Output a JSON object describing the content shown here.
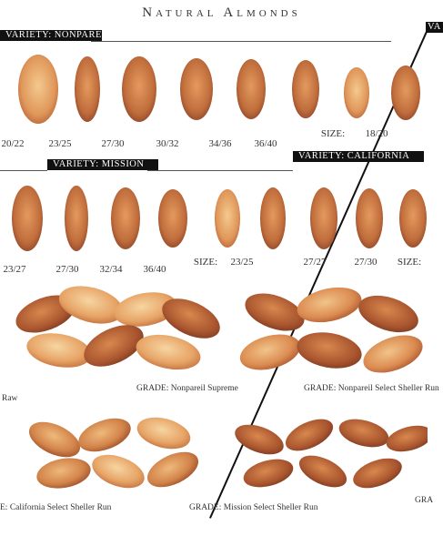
{
  "title": "Natural Almonds",
  "sections": {
    "nonpareil": {
      "band": "VARIETY: NONPAREIL"
    },
    "mission": {
      "band": "VARIETY: MISSION"
    },
    "california": {
      "band": "VARIETY: CALIFORNIA"
    },
    "corner": {
      "band": "VA"
    }
  },
  "row1": {
    "sizes": [
      "20/22",
      "23/25",
      "27/30",
      "30/32",
      "34/36",
      "36/40",
      "18/20"
    ],
    "size_label": "SIZE:"
  },
  "row2": {
    "sizes": [
      "23/27",
      "27/30",
      "32/34",
      "36/40",
      "23/25",
      "27/27",
      "27/30",
      "SIZE:"
    ],
    "size_label": "SIZE:"
  },
  "grades": {
    "g1": "Raw",
    "g2": "GRADE: Nonpareil Supreme",
    "g3": "GRADE: Nonpareil Select Sheller Run",
    "g4": "E: California Select Sheller Run",
    "g5": "GRADE: Mission Select Sheller Run",
    "g6": "GRA"
  },
  "colors": {
    "almond_light": "#e8a86a",
    "almond_dark": "#b8643a",
    "almond_deep": "#8c4528"
  }
}
